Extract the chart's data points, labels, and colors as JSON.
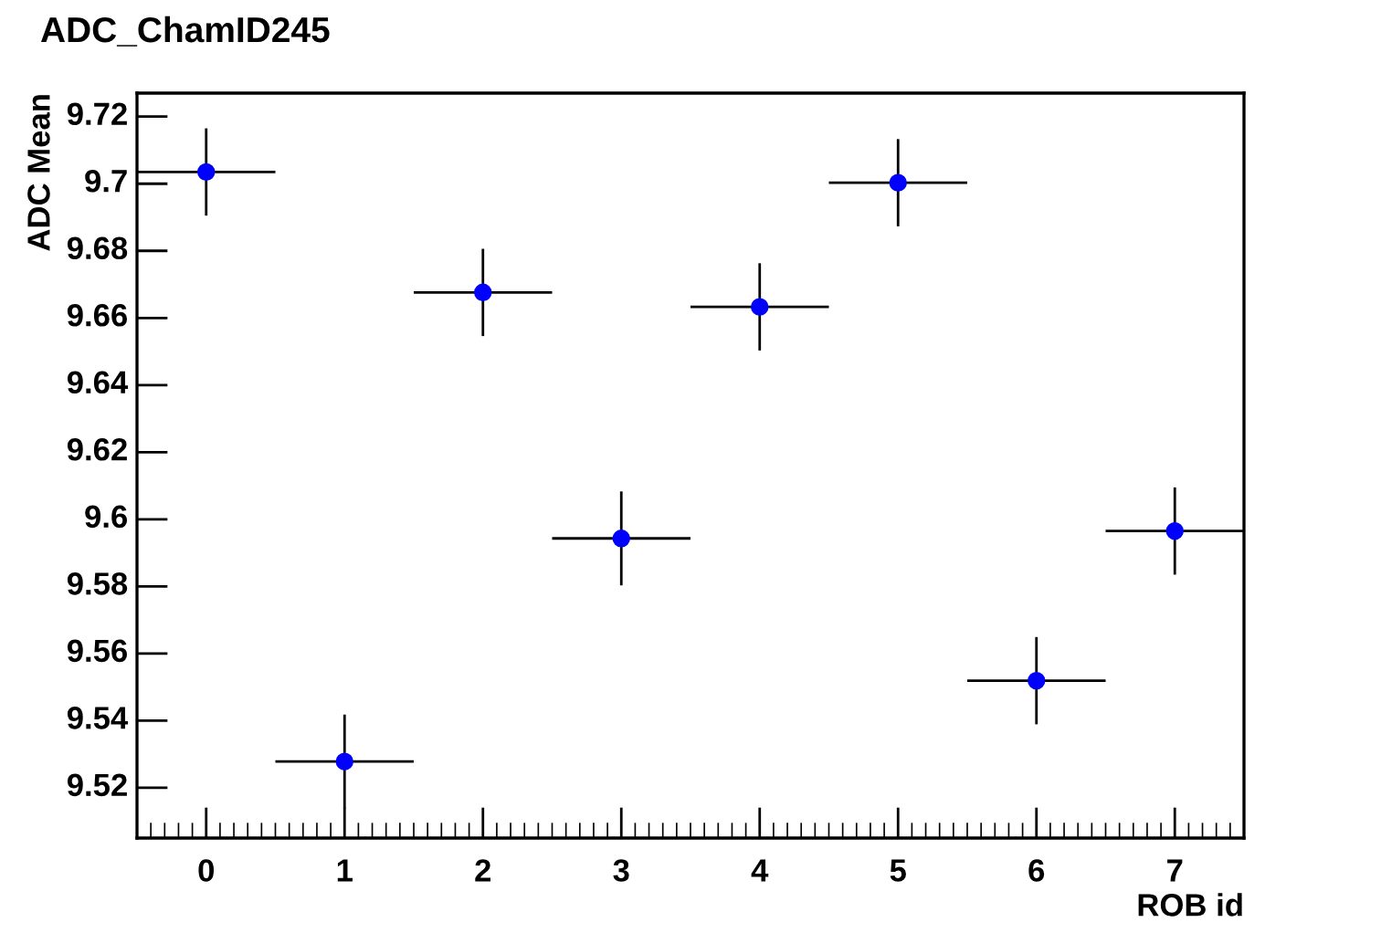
{
  "chart_data": {
    "type": "scatter",
    "title": "ADC_ChamID245",
    "xlabel": "ROB id",
    "ylabel": "ADC Mean",
    "x": [
      0,
      1,
      2,
      3,
      4,
      5,
      6,
      7
    ],
    "series": [
      {
        "color": "#0000ff",
        "values": [
          9.7035,
          9.5278,
          9.6676,
          9.5943,
          9.6633,
          9.7003,
          9.5519,
          9.5965
        ],
        "errors": [
          0.013,
          0.014,
          0.013,
          0.014,
          0.013,
          0.013,
          0.013,
          0.013
        ],
        "xerrors": [
          0.5,
          0.5,
          0.5,
          0.5,
          0.5,
          0.5,
          0.5,
          0.5
        ]
      }
    ],
    "xlim": [
      -0.5,
      7.5
    ],
    "xticks": [
      0,
      1,
      2,
      3,
      4,
      5,
      6,
      7
    ],
    "ylim": [
      9.505,
      9.727
    ],
    "yticks": [
      9.52,
      9.54,
      9.56,
      9.58,
      9.6,
      9.62,
      9.64,
      9.66,
      9.68,
      9.7,
      9.72
    ],
    "marker": "circle",
    "grid": false
  }
}
